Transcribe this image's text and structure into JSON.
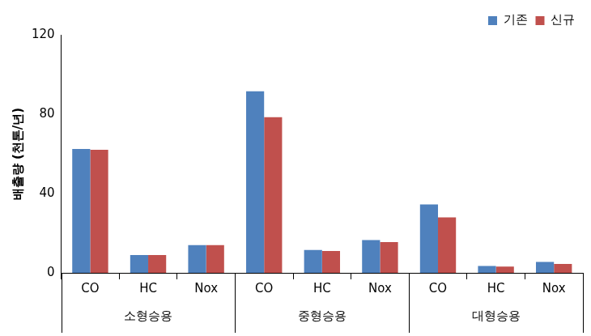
{
  "chart_data": {
    "type": "bar",
    "y_label": "배출량 (천톤/년)",
    "categories": [
      "CO",
      "HC",
      "Nox",
      "CO",
      "HC",
      "Nox",
      "CO",
      "HC",
      "Nox"
    ],
    "groups": [
      "소형승용",
      "중형승용",
      "대형승용"
    ],
    "series": [
      {
        "name": "기존",
        "color": "#4f81bd",
        "values": [
          62.5,
          9,
          14,
          91.5,
          11.5,
          16.5,
          34.5,
          3.5,
          5.5
        ]
      },
      {
        "name": "신규",
        "color": "#c0504d",
        "values": [
          62,
          9,
          14,
          78.5,
          11,
          15.5,
          28,
          3.2,
          4.5
        ]
      }
    ],
    "ylim": [
      0,
      120
    ],
    "yticks": [
      0,
      40,
      80,
      120
    ],
    "grid": false,
    "legend": "top-right"
  }
}
